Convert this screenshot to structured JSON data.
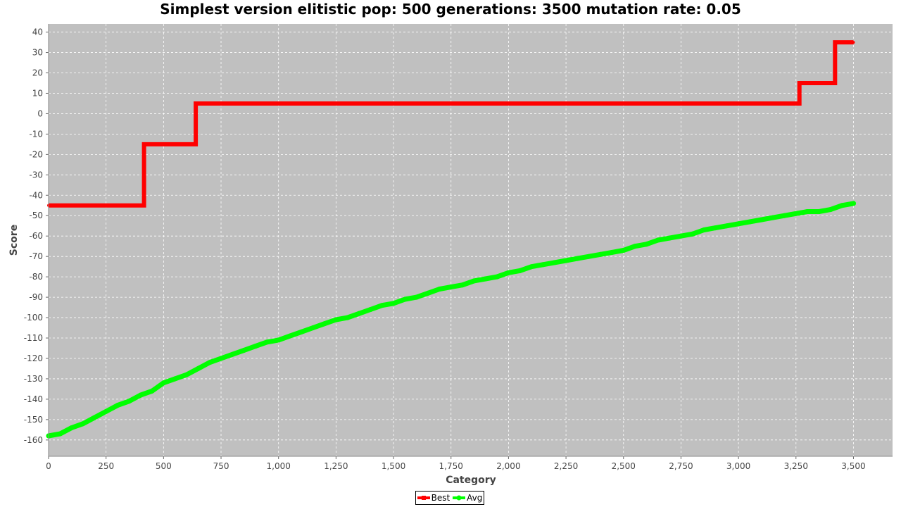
{
  "chart_data": {
    "type": "line",
    "title": "Simplest version elitistic pop: 500 generations: 3500 mutation rate: 0.05",
    "xlabel": "Category",
    "ylabel": "Score",
    "xlim": [
      0,
      3670
    ],
    "ylim": [
      -168,
      44
    ],
    "x_ticks": [
      0,
      250,
      500,
      750,
      1000,
      1250,
      1500,
      1750,
      2000,
      2250,
      2500,
      2750,
      3000,
      3250,
      3500
    ],
    "x_tick_labels": [
      "0",
      "250",
      "500",
      "750",
      "1,000",
      "1,250",
      "1,500",
      "1,750",
      "2,000",
      "2,250",
      "2,500",
      "2,750",
      "3,000",
      "3,250",
      "3,500"
    ],
    "y_ticks": [
      40,
      30,
      20,
      10,
      0,
      -10,
      -20,
      -30,
      -40,
      -50,
      -60,
      -70,
      -80,
      -90,
      -100,
      -110,
      -120,
      -130,
      -140,
      -150,
      -160
    ],
    "y_tick_labels": [
      "40",
      "30",
      "20",
      "10",
      "0",
      "-10",
      "-20",
      "-30",
      "-40",
      "-50",
      "-60",
      "-70",
      "-80",
      "-90",
      "-100",
      "-110",
      "-120",
      "-130",
      "-140",
      "-150",
      "-160"
    ],
    "grid": true,
    "background": "#c0c0c0",
    "legend_position": "bottom-center",
    "series": [
      {
        "name": "Best",
        "color": "#ff0000",
        "step": true,
        "points": [
          [
            0,
            -45
          ],
          [
            415,
            -45
          ],
          [
            415,
            -15
          ],
          [
            640,
            -15
          ],
          [
            640,
            5
          ],
          [
            3265,
            5
          ],
          [
            3265,
            15
          ],
          [
            3420,
            15
          ],
          [
            3420,
            35
          ],
          [
            3500,
            35
          ]
        ]
      },
      {
        "name": "Avg",
        "color": "#00ff00",
        "step": false,
        "points": [
          [
            0,
            -158
          ],
          [
            50,
            -157
          ],
          [
            100,
            -154
          ],
          [
            150,
            -152
          ],
          [
            200,
            -149
          ],
          [
            250,
            -146
          ],
          [
            300,
            -143
          ],
          [
            350,
            -141
          ],
          [
            400,
            -138
          ],
          [
            450,
            -136
          ],
          [
            500,
            -132
          ],
          [
            550,
            -130
          ],
          [
            600,
            -128
          ],
          [
            650,
            -125
          ],
          [
            700,
            -122
          ],
          [
            750,
            -120
          ],
          [
            800,
            -118
          ],
          [
            850,
            -116
          ],
          [
            900,
            -114
          ],
          [
            950,
            -112
          ],
          [
            1000,
            -111
          ],
          [
            1050,
            -109
          ],
          [
            1100,
            -107
          ],
          [
            1150,
            -105
          ],
          [
            1200,
            -103
          ],
          [
            1250,
            -101
          ],
          [
            1300,
            -100
          ],
          [
            1350,
            -98
          ],
          [
            1400,
            -96
          ],
          [
            1450,
            -94
          ],
          [
            1500,
            -93
          ],
          [
            1550,
            -91
          ],
          [
            1600,
            -90
          ],
          [
            1650,
            -88
          ],
          [
            1700,
            -86
          ],
          [
            1750,
            -85
          ],
          [
            1800,
            -84
          ],
          [
            1850,
            -82
          ],
          [
            1900,
            -81
          ],
          [
            1950,
            -80
          ],
          [
            2000,
            -78
          ],
          [
            2050,
            -77
          ],
          [
            2100,
            -75
          ],
          [
            2150,
            -74
          ],
          [
            2200,
            -73
          ],
          [
            2250,
            -72
          ],
          [
            2300,
            -71
          ],
          [
            2350,
            -70
          ],
          [
            2400,
            -69
          ],
          [
            2450,
            -68
          ],
          [
            2500,
            -67
          ],
          [
            2550,
            -65
          ],
          [
            2600,
            -64
          ],
          [
            2650,
            -62
          ],
          [
            2700,
            -61
          ],
          [
            2750,
            -60
          ],
          [
            2800,
            -59
          ],
          [
            2850,
            -57
          ],
          [
            2900,
            -56
          ],
          [
            2950,
            -55
          ],
          [
            3000,
            -54
          ],
          [
            3050,
            -53
          ],
          [
            3100,
            -52
          ],
          [
            3150,
            -51
          ],
          [
            3200,
            -50
          ],
          [
            3250,
            -49
          ],
          [
            3300,
            -48
          ],
          [
            3350,
            -48
          ],
          [
            3400,
            -47
          ],
          [
            3450,
            -45
          ],
          [
            3500,
            -44
          ]
        ]
      }
    ]
  }
}
